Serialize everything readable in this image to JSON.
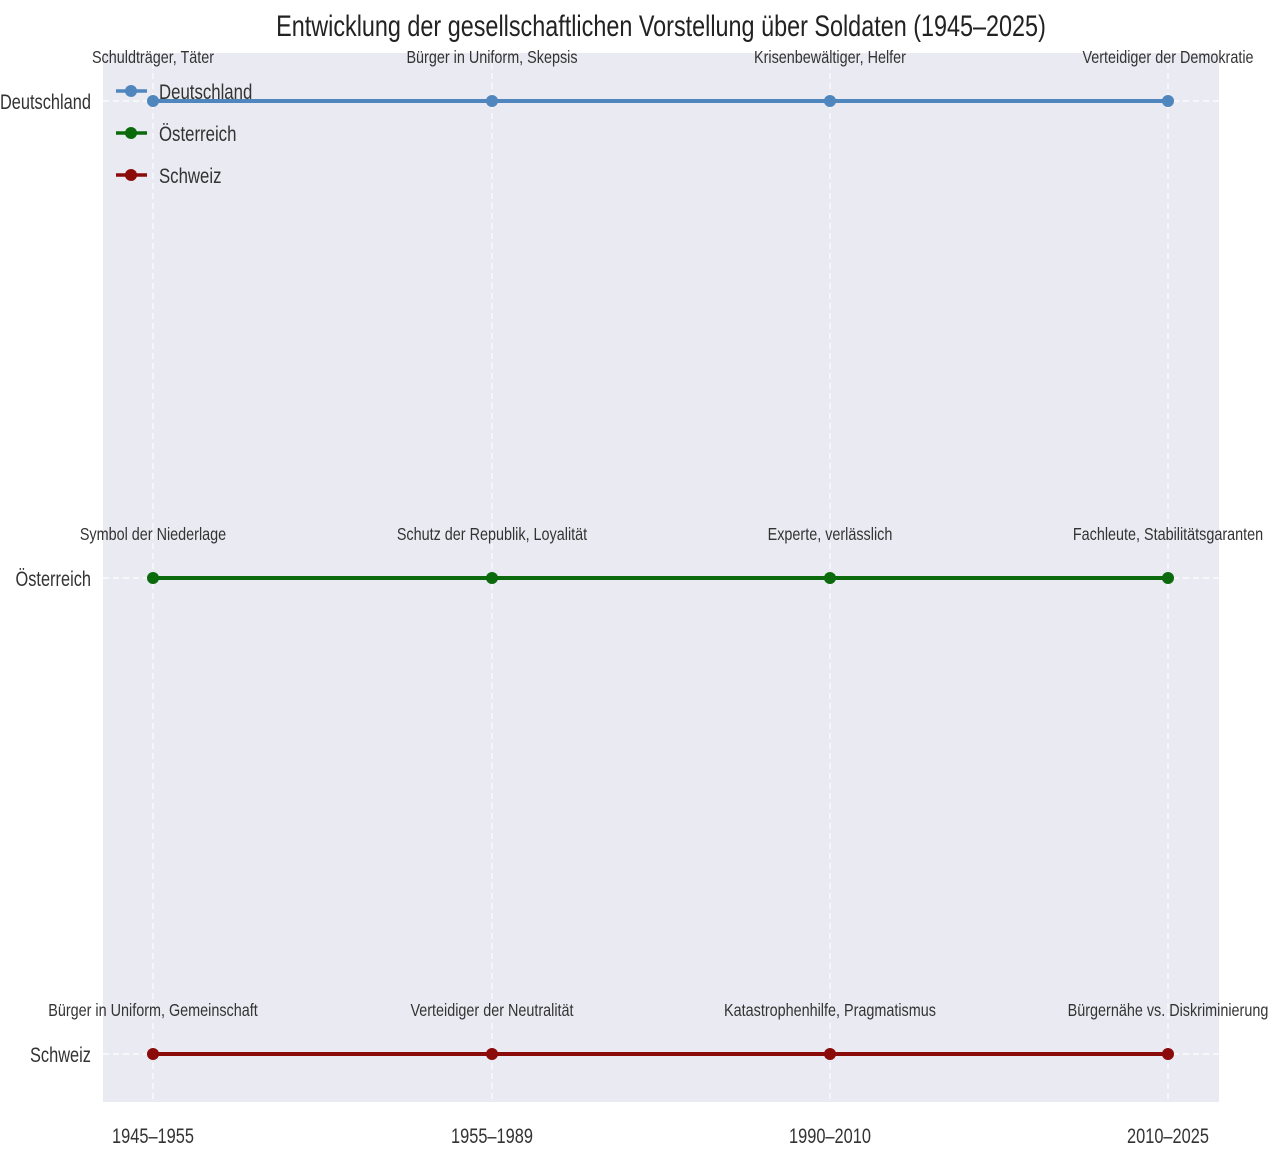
{
  "chart_data": {
    "type": "line",
    "title": "Entwicklung der gesellschaftlichen Vorstellung über Soldaten (1945–2025)",
    "xlabel": "",
    "ylabel": "",
    "categories": [
      "1945–1955",
      "1955–1989",
      "1990–2010",
      "2010–2025"
    ],
    "rows": [
      "Deutschland",
      "Österreich",
      "Schweiz"
    ],
    "grid": true,
    "legend_position": "top-left",
    "series": [
      {
        "name": "Deutschland",
        "color": "#4f86bd",
        "labels": [
          "Schuldträger, Täter",
          "Bürger in Uniform, Skepsis",
          "Krisenbewältiger, Helfer",
          "Verteidiger der Demokratie"
        ]
      },
      {
        "name": "Österreich",
        "color": "#0b6a0b",
        "labels": [
          "Symbol der Niederlage",
          "Schutz der Republik, Loyalität",
          "Experte, verlässlich",
          "Fachleute, Stabilitätsgaranten"
        ]
      },
      {
        "name": "Schweiz",
        "color": "#8b0a0a",
        "labels": [
          "Bürger in Uniform, Gemeinschaft",
          "Verteidiger der Neutralität",
          "Katastrophenhilfe, Pragmatismus",
          "Bürgernähe vs. Diskriminierung"
        ]
      }
    ],
    "background_color": "#eaeaf2"
  }
}
